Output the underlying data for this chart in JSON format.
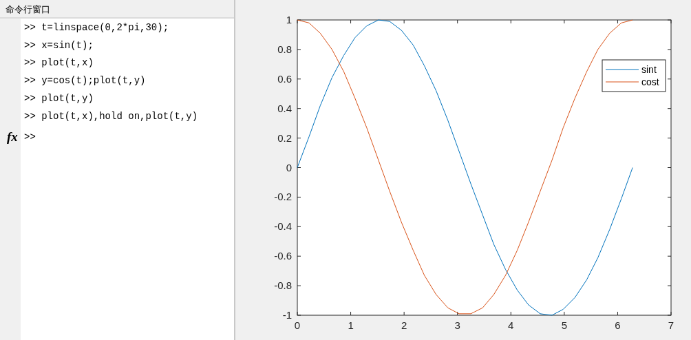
{
  "chart_data": {
    "type": "line",
    "x": [
      0,
      0.22,
      0.43,
      0.65,
      0.87,
      1.08,
      1.3,
      1.52,
      1.73,
      1.95,
      2.17,
      2.38,
      2.6,
      2.82,
      3.03,
      3.25,
      3.47,
      3.68,
      3.9,
      4.12,
      4.33,
      4.55,
      4.77,
      4.98,
      5.2,
      5.42,
      5.63,
      5.85,
      6.07,
      6.28
    ],
    "series": [
      {
        "name": "sint",
        "color": "#0072bd",
        "values": [
          0,
          0.21,
          0.42,
          0.61,
          0.76,
          0.88,
          0.96,
          1.0,
          0.99,
          0.93,
          0.83,
          0.69,
          0.52,
          0.32,
          0.11,
          -0.11,
          -0.32,
          -0.52,
          -0.69,
          -0.83,
          -0.93,
          -0.99,
          -1.0,
          -0.96,
          -0.88,
          -0.76,
          -0.61,
          -0.42,
          -0.21,
          0
        ]
      },
      {
        "name": "cost",
        "color": "#d95319",
        "values": [
          1,
          0.98,
          0.91,
          0.8,
          0.65,
          0.47,
          0.27,
          0.05,
          -0.16,
          -0.37,
          -0.56,
          -0.73,
          -0.86,
          -0.95,
          -0.99,
          -0.99,
          -0.95,
          -0.86,
          -0.73,
          -0.56,
          -0.37,
          -0.16,
          0.05,
          0.27,
          0.47,
          0.65,
          0.8,
          0.91,
          0.98,
          1
        ]
      }
    ],
    "xlim": [
      0,
      7
    ],
    "ylim": [
      -1,
      1
    ],
    "xticks": [
      0,
      1,
      2,
      3,
      4,
      5,
      6,
      7
    ],
    "yticks": [
      -1,
      -0.8,
      -0.6,
      -0.4,
      -0.2,
      0,
      0.2,
      0.4,
      0.6,
      0.8,
      1
    ],
    "legend": "top right",
    "grid": false,
    "marker": "none",
    "line_style": "solid",
    "annotations": [
      "命令行窗口",
      ">> t=linspace(0,2*pi,30);",
      ">> x=sin(t);",
      ">> plot(t,x)",
      ">> y=cos(t);plot(t,y)",
      ">> plot(t,y)",
      ">> plot(t,x),hold on,plot(t,y)",
      "fx",
      ">>"
    ]
  }
}
